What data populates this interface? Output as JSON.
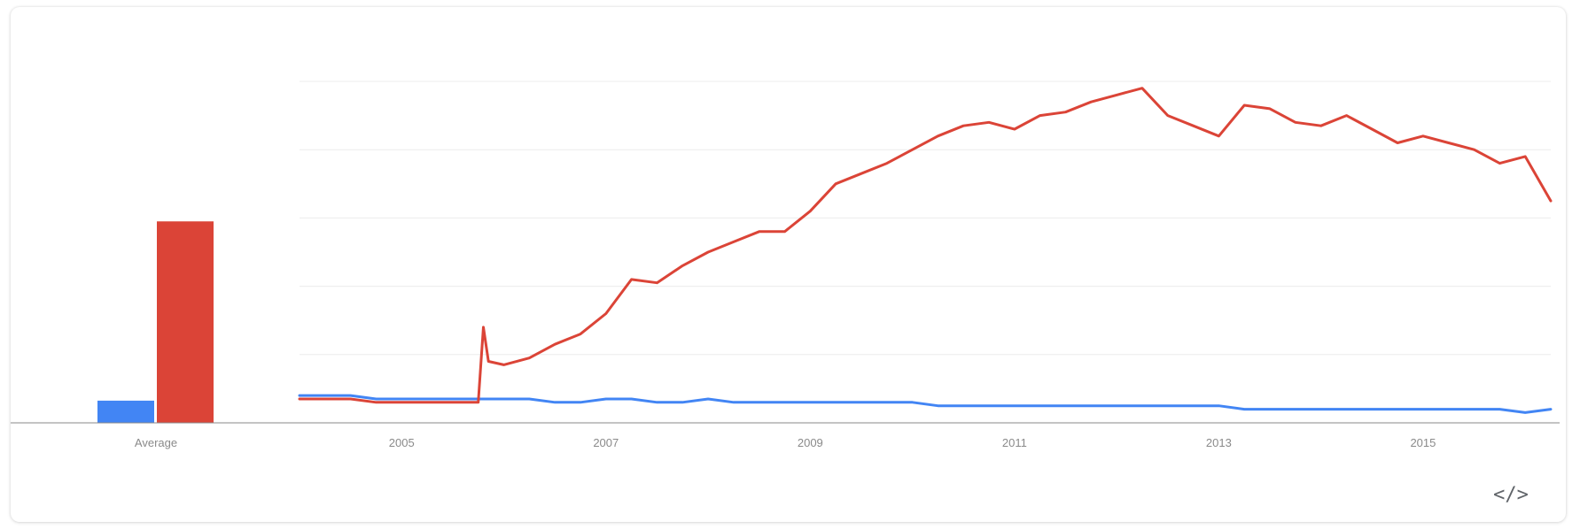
{
  "chart_data": [
    {
      "type": "bar",
      "categories": [
        "Average"
      ],
      "series": [
        {
          "color": "#4285f4",
          "values": [
            6.5
          ]
        },
        {
          "color": "#db4437",
          "values": [
            59
          ]
        }
      ],
      "ylim": [
        0,
        100
      ],
      "grid": true
    },
    {
      "type": "line",
      "x_tick_labels": [
        "2005",
        "2007",
        "2009",
        "2011",
        "2013",
        "2015"
      ],
      "x_ticks": [
        2005,
        2007,
        2009,
        2011,
        2013,
        2015
      ],
      "xlim": [
        2004.0,
        2016.25
      ],
      "ylim": [
        0,
        100
      ],
      "grid": true,
      "series": [
        {
          "color": "#4285f4",
          "x": [
            2004.0,
            2004.25,
            2004.5,
            2004.75,
            2005.0,
            2005.25,
            2005.5,
            2005.75,
            2006.0,
            2006.25,
            2006.5,
            2006.75,
            2007.0,
            2007.25,
            2007.5,
            2007.75,
            2008.0,
            2008.25,
            2008.5,
            2008.75,
            2009.0,
            2009.25,
            2009.5,
            2009.75,
            2010.0,
            2010.25,
            2010.5,
            2010.75,
            2011.0,
            2011.25,
            2011.5,
            2011.75,
            2012.0,
            2012.25,
            2012.5,
            2012.75,
            2013.0,
            2013.25,
            2013.5,
            2013.75,
            2014.0,
            2014.25,
            2014.5,
            2014.75,
            2015.0,
            2015.25,
            2015.5,
            2015.75,
            2016.0,
            2016.25
          ],
          "y": [
            8,
            8,
            8,
            7,
            7,
            7,
            7,
            7,
            7,
            7,
            6,
            6,
            7,
            7,
            6,
            6,
            7,
            6,
            6,
            6,
            6,
            6,
            6,
            6,
            6,
            5,
            5,
            5,
            5,
            5,
            5,
            5,
            5,
            5,
            5,
            5,
            5,
            4,
            4,
            4,
            4,
            4,
            4,
            4,
            4,
            4,
            4,
            4,
            3,
            4
          ]
        },
        {
          "color": "#db4437",
          "x": [
            2004.0,
            2004.25,
            2004.5,
            2004.75,
            2005.0,
            2005.25,
            2005.5,
            2005.75,
            2005.8,
            2005.85,
            2006.0,
            2006.25,
            2006.5,
            2006.75,
            2007.0,
            2007.25,
            2007.5,
            2007.75,
            2008.0,
            2008.25,
            2008.5,
            2008.75,
            2009.0,
            2009.25,
            2009.5,
            2009.75,
            2010.0,
            2010.25,
            2010.5,
            2010.75,
            2011.0,
            2011.25,
            2011.5,
            2011.75,
            2012.0,
            2012.25,
            2012.5,
            2012.75,
            2013.0,
            2013.25,
            2013.5,
            2013.75,
            2014.0,
            2014.25,
            2014.5,
            2014.75,
            2015.0,
            2015.25,
            2015.5,
            2015.75,
            2016.0,
            2016.25
          ],
          "y": [
            7,
            7,
            7,
            6,
            6,
            6,
            6,
            6,
            28,
            18,
            17,
            19,
            23,
            26,
            32,
            42,
            41,
            46,
            50,
            53,
            56,
            56,
            62,
            70,
            73,
            76,
            80,
            84,
            87,
            88,
            86,
            90,
            91,
            94,
            96,
            98,
            90,
            87,
            84,
            93,
            92,
            88,
            87,
            90,
            86,
            82,
            84,
            82,
            80,
            76,
            78,
            65
          ]
        }
      ]
    }
  ],
  "toolbar": {
    "embed_icon": "code-embed-icon",
    "embed_glyph": "</>"
  }
}
